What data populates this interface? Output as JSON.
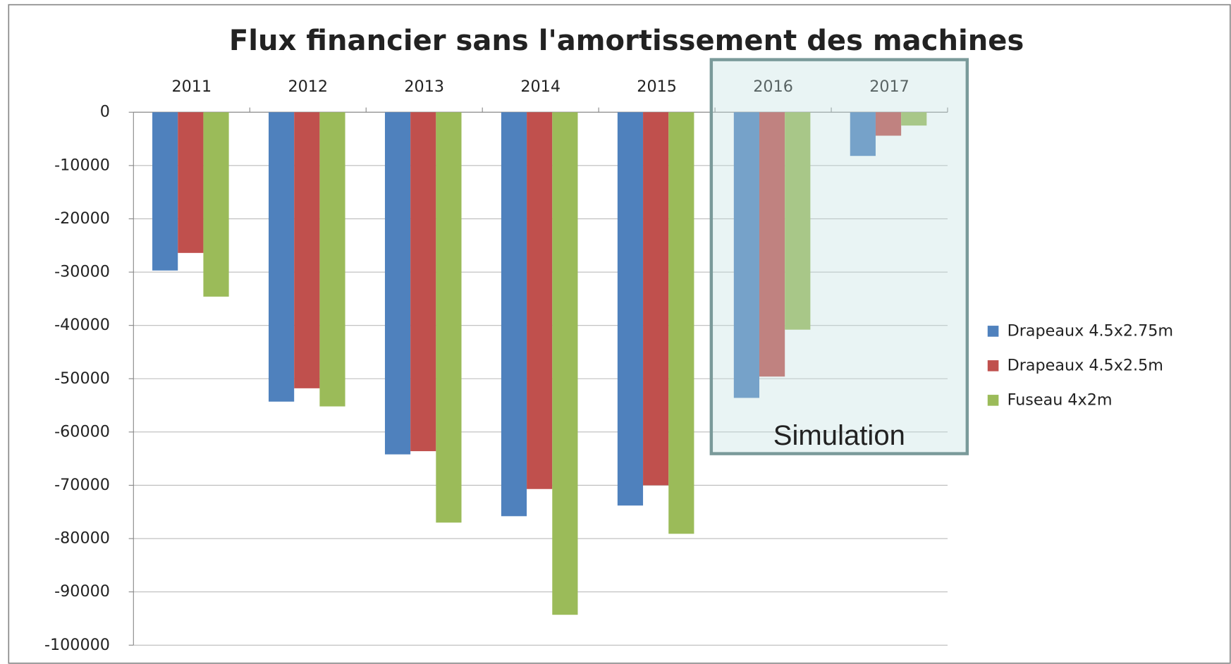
{
  "chart_data": {
    "type": "bar",
    "title": "Flux financier sans l'amortissement des machines",
    "categories": [
      "2011",
      "2012",
      "2013",
      "2014",
      "2015",
      "2016",
      "2017"
    ],
    "series": [
      {
        "name": "Drapeaux 4.5x2.75m",
        "color": "#4f81bd",
        "values": [
          -29700,
          -54300,
          -64200,
          -75800,
          -73800,
          -53600,
          -8200
        ]
      },
      {
        "name": "Drapeaux 4.5x2.5m",
        "color": "#c0504d",
        "values": [
          -26400,
          -51800,
          -63600,
          -70700,
          -70000,
          -49600,
          -4400
        ]
      },
      {
        "name": "Fuseau 4x2m",
        "color": "#9bbb59",
        "values": [
          -34600,
          -55200,
          -77000,
          -94300,
          -79100,
          -40800,
          -2500
        ]
      }
    ],
    "ylim": [
      -100000,
      0
    ],
    "yticks": [
      0,
      -10000,
      -20000,
      -30000,
      -40000,
      -50000,
      -60000,
      -70000,
      -80000,
      -90000,
      -100000
    ],
    "grid": true,
    "legend": "right",
    "annotation": "Simulation"
  }
}
